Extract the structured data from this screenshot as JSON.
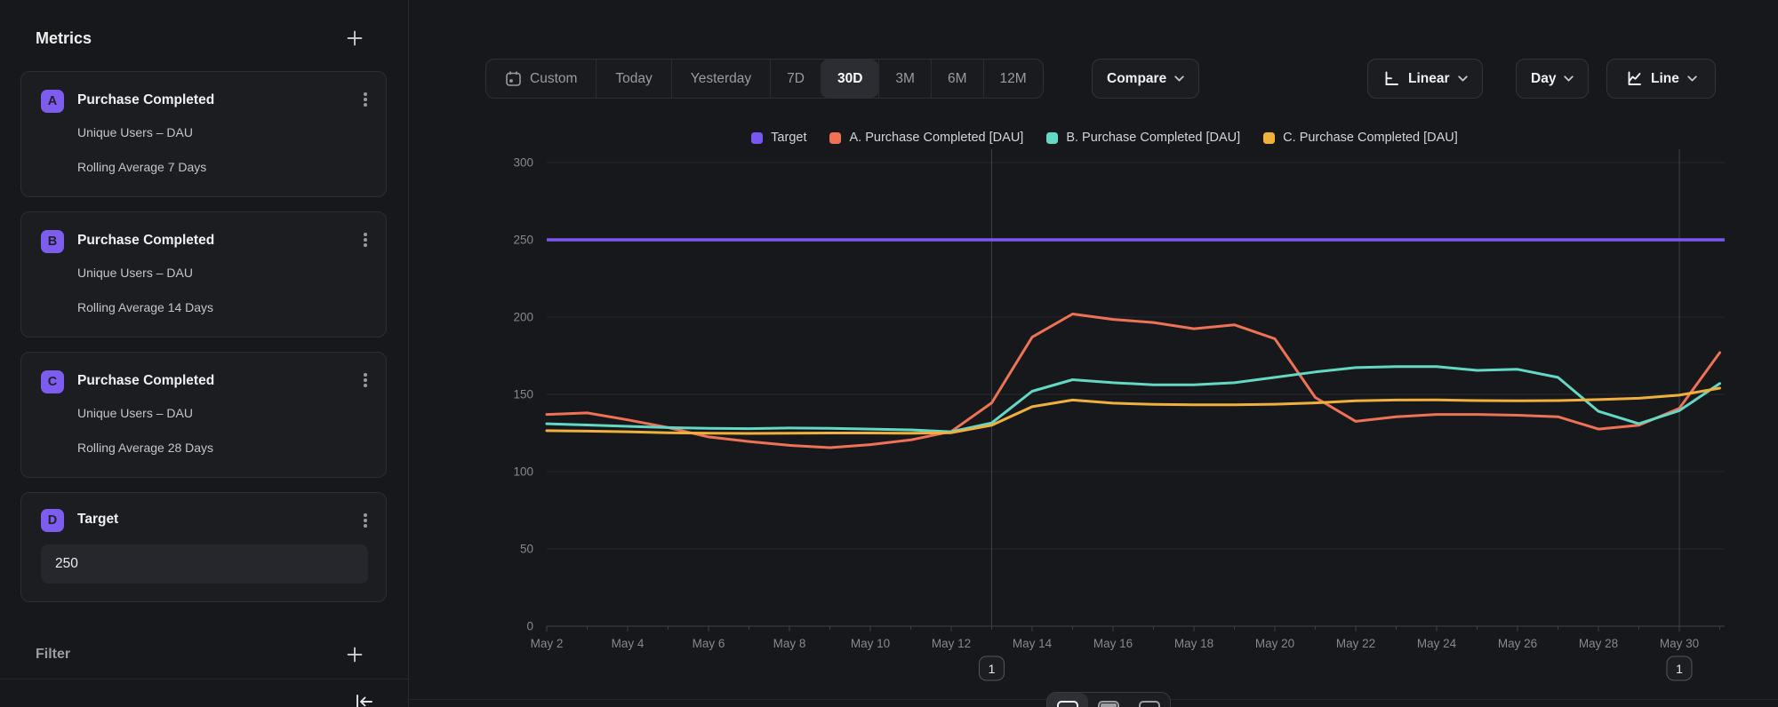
{
  "sidebar": {
    "title": "Metrics",
    "metrics": [
      {
        "badge": "A",
        "title": "Purchase Completed",
        "line1": "Unique Users – DAU",
        "line2": "Rolling Average 7 Days"
      },
      {
        "badge": "B",
        "title": "Purchase Completed",
        "line1": "Unique Users – DAU",
        "line2": "Rolling Average 14 Days"
      },
      {
        "badge": "C",
        "title": "Purchase Completed",
        "line1": "Unique Users – DAU",
        "line2": "Rolling Average 28 Days"
      }
    ],
    "target": {
      "badge": "D",
      "title": "Target",
      "value": "250"
    },
    "filter_label": "Filter"
  },
  "toolbar": {
    "ranges": [
      "Custom",
      "Today",
      "Yesterday",
      "7D",
      "30D",
      "3M",
      "6M",
      "12M"
    ],
    "active_range": "30D",
    "compare_label": "Compare",
    "scale_label": "Linear",
    "interval_label": "Day",
    "chart_type_label": "Line"
  },
  "colors": {
    "background": "#17181b",
    "card": "#1c1d21",
    "accent_purple": "#7e5cf0",
    "series_target": "#7b57f2",
    "series_a": "#ee7255",
    "series_b": "#63d9c5",
    "series_c": "#f0b13c"
  },
  "chart_data": {
    "type": "line",
    "title": "",
    "x": [
      "May 2",
      "May 3",
      "May 4",
      "May 5",
      "May 6",
      "May 7",
      "May 8",
      "May 9",
      "May 10",
      "May 11",
      "May 12",
      "May 13",
      "May 14",
      "May 15",
      "May 16",
      "May 17",
      "May 18",
      "May 19",
      "May 20",
      "May 21",
      "May 22",
      "May 23",
      "May 24",
      "May 25",
      "May 26",
      "May 27",
      "May 28",
      "May 29",
      "May 30",
      "May 31"
    ],
    "xlabel": "",
    "ylabel": "",
    "ylim": [
      0,
      300
    ],
    "yticks": [
      0,
      50,
      100,
      150,
      200,
      250,
      300
    ],
    "grid": true,
    "legend_position": "top-center",
    "annotations": [
      {
        "label": "1",
        "x": "May 13"
      },
      {
        "label": "1",
        "x": "May 30"
      }
    ],
    "series": [
      {
        "name": "Target",
        "type": "reference-line",
        "color": "#7b57f2",
        "value": 250
      },
      {
        "name": "A. Purchase Completed [DAU]",
        "type": "line",
        "color": "#ee7255",
        "values": [
          137,
          138,
          133.5,
          128.5,
          122.5,
          119.5,
          117,
          115.5,
          117.5,
          120.5,
          126,
          144.5,
          187,
          202,
          198.5,
          196.5,
          192.5,
          195,
          186,
          148,
          132.5,
          135.5,
          137,
          137,
          136.5,
          135.5,
          127.5,
          130,
          141,
          177
        ]
      },
      {
        "name": "B. Purchase Completed [DAU]",
        "type": "line",
        "color": "#63d9c5",
        "values": [
          131,
          130.2,
          129.3,
          128.5,
          128,
          127.8,
          128.2,
          128,
          127.5,
          127,
          125.8,
          131.5,
          152,
          159.5,
          157.5,
          156.2,
          156.2,
          157.5,
          161,
          164.5,
          167.3,
          168,
          168,
          165.5,
          166.2,
          161,
          139,
          131,
          139.5,
          157
        ]
      },
      {
        "name": "C. Purchase Completed [DAU]",
        "type": "line",
        "color": "#f0b13c",
        "values": [
          126.5,
          126.2,
          125.8,
          125.2,
          124.8,
          124.7,
          124.8,
          125,
          125,
          124.8,
          125.2,
          130,
          142,
          146.3,
          144.3,
          143.5,
          143.2,
          143.2,
          143.6,
          144.5,
          145.8,
          146.3,
          146.4,
          146,
          145.8,
          146,
          146.6,
          147.5,
          149.5,
          154
        ]
      }
    ],
    "view_toggle_icons": [
      "chart-view-icon",
      "split-view-icon",
      "table-view-icon"
    ]
  }
}
